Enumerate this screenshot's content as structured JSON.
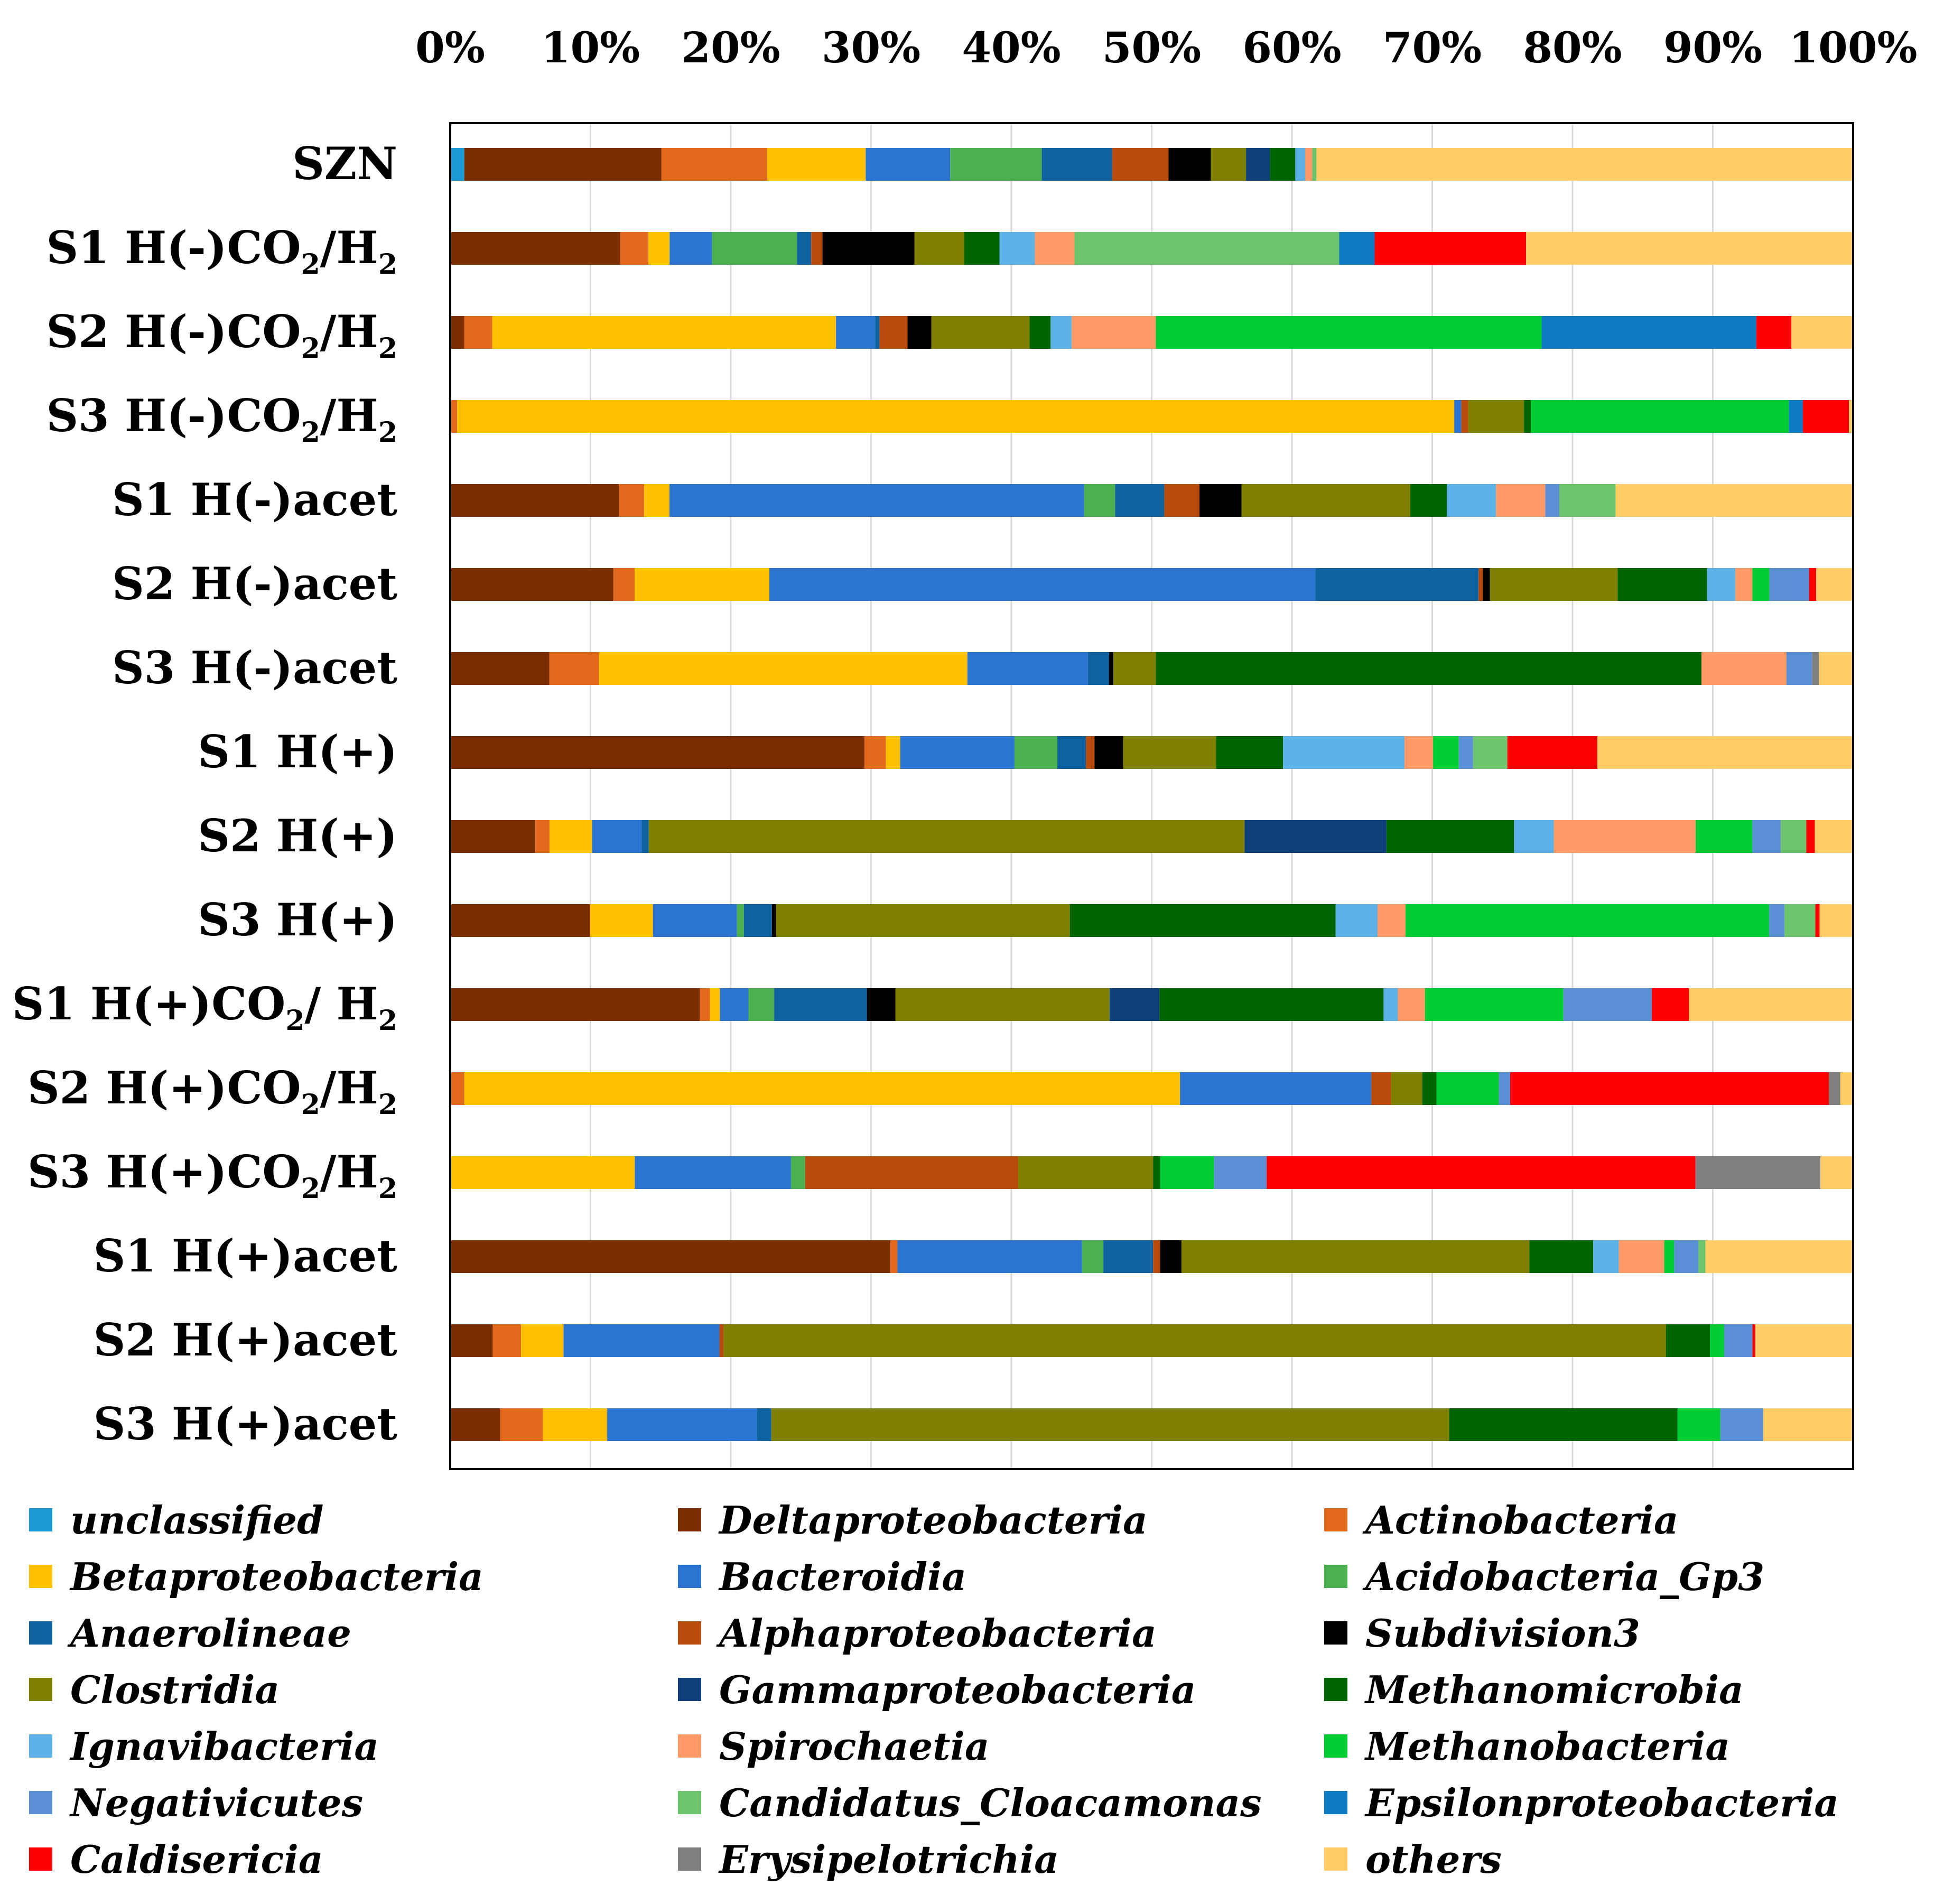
{
  "chart_data": {
    "type": "bar",
    "orientation": "horizontal",
    "stacked": true,
    "normalized": true,
    "title": "",
    "xlabel": "",
    "ylabel": "",
    "xlim": [
      0,
      100
    ],
    "x_ticks": [
      "0%",
      "10%",
      "20%",
      "30%",
      "40%",
      "50%",
      "60%",
      "70%",
      "80%",
      "90%",
      "100%"
    ],
    "grid": true,
    "legend_position": "bottom",
    "categories": [
      {
        "pre": "SZN",
        "sub1": "",
        "mid": "",
        "sub2": ""
      },
      {
        "pre": "S1 H(-)CO",
        "sub1": "2",
        "mid": "/H",
        "sub2": "2"
      },
      {
        "pre": "S2 H(-)CO",
        "sub1": "2",
        "mid": "/H",
        "sub2": "2"
      },
      {
        "pre": "S3 H(-)CO",
        "sub1": "2",
        "mid": "/H",
        "sub2": "2"
      },
      {
        "pre": "S1 H(-)acet",
        "sub1": "",
        "mid": "",
        "sub2": ""
      },
      {
        "pre": "S2 H(-)acet",
        "sub1": "",
        "mid": "",
        "sub2": ""
      },
      {
        "pre": "S3 H(-)acet",
        "sub1": "",
        "mid": "",
        "sub2": ""
      },
      {
        "pre": "S1 H(+)",
        "sub1": "",
        "mid": "",
        "sub2": ""
      },
      {
        "pre": "S2 H(+)",
        "sub1": "",
        "mid": "",
        "sub2": ""
      },
      {
        "pre": "S3 H(+)",
        "sub1": "",
        "mid": "",
        "sub2": ""
      },
      {
        "pre": "S1 H(+)CO",
        "sub1": "2",
        "mid": "/ H",
        "sub2": "2"
      },
      {
        "pre": "S2 H(+)CO",
        "sub1": "2",
        "mid": "/H",
        "sub2": "2"
      },
      {
        "pre": "S3 H(+)CO",
        "sub1": "2",
        "mid": "/H",
        "sub2": "2"
      },
      {
        "pre": "S1 H(+)acet",
        "sub1": "",
        "mid": "",
        "sub2": ""
      },
      {
        "pre": "S2 H(+)acet",
        "sub1": "",
        "mid": "",
        "sub2": ""
      },
      {
        "pre": "S3 H(+)acet",
        "sub1": "",
        "mid": "",
        "sub2": ""
      }
    ],
    "series": [
      {
        "name": "unclassified",
        "color": "#1b9ad6",
        "values": [
          1.0,
          0,
          0,
          0,
          0,
          0,
          0,
          0,
          0,
          0,
          0,
          0,
          0,
          0,
          0,
          0
        ]
      },
      {
        "name": "Deltaproteobacteria",
        "color": "#7b2e00",
        "values": [
          14,
          12,
          1,
          0,
          12,
          11.5,
          7,
          29,
          6,
          10,
          17.5,
          0,
          0,
          31,
          3,
          3.5
        ]
      },
      {
        "name": "Actinobacteria",
        "color": "#e2681b",
        "values": [
          7.5,
          2,
          2,
          0.5,
          1.8,
          1.5,
          3.5,
          1.5,
          1,
          0,
          0.7,
          1,
          0,
          0.5,
          2,
          3
        ]
      },
      {
        "name": "Betaproteobacteria",
        "color": "#ffc000",
        "values": [
          7,
          1.5,
          24.5,
          71.5,
          1.8,
          9.5,
          26,
          1,
          3,
          4.5,
          0.7,
          50.5,
          13,
          0,
          3,
          4.5
        ]
      },
      {
        "name": "Bacteroidia",
        "color": "#2b74d1",
        "values": [
          6,
          3,
          2.8,
          0.5,
          29.5,
          38.5,
          8.5,
          8,
          3.5,
          6,
          2,
          13.5,
          11,
          13,
          11,
          10.5
        ]
      },
      {
        "name": "Acidobacteria_Gp3",
        "color": "#4caf50",
        "values": [
          6.5,
          6,
          0,
          0,
          2.2,
          0,
          0,
          3,
          0,
          0.5,
          1.8,
          0,
          1,
          1.5,
          0,
          0
        ]
      },
      {
        "name": "Anaerolineae",
        "color": "#0f62a0",
        "values": [
          5,
          1,
          0.3,
          0,
          3.5,
          11.5,
          1.5,
          2,
          0.5,
          2,
          6.5,
          0,
          0,
          3.5,
          0,
          1
        ]
      },
      {
        "name": "Alphaproteobacteria",
        "color": "#b84a0b",
        "values": [
          4,
          0.8,
          2,
          0.5,
          2.5,
          0.3,
          0,
          0.6,
          0,
          0,
          0,
          1.4,
          15,
          0.5,
          0.3,
          0
        ]
      },
      {
        "name": "Subdivision3",
        "color": "#000000",
        "values": [
          3,
          6.5,
          1.7,
          0,
          3,
          0.5,
          0.3,
          2,
          0,
          0.3,
          2,
          0,
          0,
          1.5,
          0,
          0
        ]
      },
      {
        "name": "Clostridia",
        "color": "#808000",
        "values": [
          2.5,
          3.5,
          7,
          4,
          12,
          9,
          3,
          6.5,
          42,
          21,
          15,
          2.2,
          9.5,
          24.5,
          66.5,
          47.5
        ]
      },
      {
        "name": "Gammaproteobacteria",
        "color": "#0e3f7a",
        "values": [
          1.7,
          0,
          0,
          0,
          0,
          0,
          0,
          0,
          10,
          0,
          3.5,
          0,
          0,
          0,
          0,
          0
        ]
      },
      {
        "name": "Methanomicrobia",
        "color": "#006400",
        "values": [
          1.8,
          2.5,
          1.5,
          0.5,
          2.6,
          6.3,
          38.5,
          4.7,
          9,
          19,
          15.7,
          1,
          0.5,
          4.5,
          3.1,
          16
        ]
      },
      {
        "name": "Ignavibacteria",
        "color": "#5db3e8",
        "values": [
          0.7,
          2.5,
          1.5,
          0,
          3.5,
          2,
          0,
          8.5,
          2.8,
          3,
          1,
          0,
          0,
          1.8,
          0,
          0
        ]
      },
      {
        "name": "Spirochaetia",
        "color": "#ff9966",
        "values": [
          0.5,
          2.8,
          6,
          0,
          3.5,
          1.2,
          6,
          2,
          10,
          2,
          1.9,
          0,
          0,
          3.2,
          0,
          0
        ]
      },
      {
        "name": "Methanobacteria",
        "color": "#00cc33",
        "values": [
          0,
          0,
          27.5,
          18.5,
          0,
          1.2,
          0,
          1.8,
          4,
          26,
          9.7,
          4.4,
          3.8,
          0.7,
          1,
          3
        ]
      },
      {
        "name": "Negativicutes",
        "color": "#5b8fd6",
        "values": [
          0,
          0,
          0,
          0,
          1,
          2.8,
          1.8,
          1,
          2,
          1.1,
          6.2,
          0.8,
          3.7,
          1.7,
          2,
          3
        ]
      },
      {
        "name": "Candidatus_Cloacamonas",
        "color": "#6cc46c",
        "values": [
          0.3,
          18.7,
          0,
          0,
          4,
          0,
          0,
          2.4,
          1.8,
          2.2,
          0,
          0,
          0,
          0.5,
          0,
          0
        ]
      },
      {
        "name": "Epsilonproteobacteria",
        "color": "#0f7ac4",
        "values": [
          0,
          2.5,
          15.3,
          1,
          0,
          0,
          0,
          0,
          0,
          0,
          0,
          0,
          0,
          0,
          0,
          0
        ]
      },
      {
        "name": "Caldisericia",
        "color": "#ff0000",
        "values": [
          0,
          10.7,
          2.5,
          3.3,
          0,
          0.5,
          0,
          6.3,
          0.6,
          0.3,
          2.6,
          22.5,
          30.2,
          0,
          0.2,
          0
        ]
      },
      {
        "name": "Erysipelotrichia",
        "color": "#7f7f7f",
        "values": [
          0,
          0,
          0,
          0,
          0,
          0,
          0.5,
          0,
          0,
          0,
          0,
          0.8,
          8.8,
          0,
          0,
          0
        ]
      },
      {
        "name": "others",
        "color": "#ffcc66",
        "values": [
          38.1,
          23.1,
          4.4,
          0.3,
          16.9,
          2.6,
          2.4,
          17.9,
          2.7,
          2.4,
          11.5,
          0.9,
          2.3,
          10.4,
          6.9,
          6.3
        ]
      }
    ]
  }
}
